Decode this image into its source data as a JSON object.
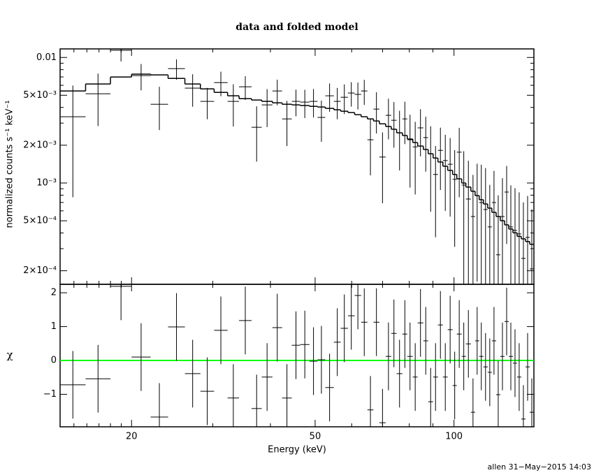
{
  "chart_data": {
    "type": "spectrum",
    "title": "data and folded model",
    "xlabel": "Energy (keV)",
    "footer": "allen 31−May−2015 14:03",
    "xscale": "log",
    "xlim": [
      14,
      149
    ],
    "xticks": [
      20,
      50,
      100
    ],
    "xminor": [
      15,
      16,
      17,
      18,
      19,
      30,
      40,
      60,
      70,
      80,
      90
    ],
    "bins": [
      14.0,
      15.9,
      18.0,
      20.0,
      22.0,
      24.0,
      26.1,
      28.2,
      30.2,
      32.3,
      34.2,
      36.4,
      38.3,
      40.4,
      42.4,
      44.5,
      46.4,
      48.6,
      50.6,
      52.6,
      54.9,
      56.8,
      58.9,
      60.9,
      62.9,
      64.9,
      66.9,
      68.9,
      71.1,
      73.1,
      75.1,
      77.3,
      79.2,
      81.4,
      83.4,
      85.8,
      87.9,
      90.1,
      92.3,
      94.6,
      96.9,
      99.3,
      101.4,
      103.9,
      106.1,
      108.8,
      111.1,
      113.4,
      115.8,
      118.3,
      120.8,
      123.4,
      126.0,
      128.7,
      131.4,
      134.2,
      137.0,
      139.9,
      142.9,
      145.9,
      149.0
    ],
    "panels": [
      {
        "ylabel": "normalized counts s⁻¹ keV⁻¹",
        "yscale": "log",
        "ylim": [
          0.000156,
          0.0117
        ],
        "yticks": [
          0.01,
          {
            "value": 0.005,
            "label": "5×10⁻³"
          },
          {
            "value": 0.002,
            "label": "2×10⁻³"
          },
          {
            "value": 0.001,
            "label": "10⁻³"
          },
          {
            "value": 0.0005,
            "label": "5×10⁻⁴"
          },
          {
            "value": 0.0002,
            "label": "2×10⁻⁴"
          }
        ],
        "yminor": [
          0.003,
          0.004,
          0.006,
          0.007,
          0.008,
          0.009,
          0.0003,
          0.0004,
          0.0006,
          0.0007,
          0.0008,
          0.0009
        ],
        "color": "#000000",
        "values": [
          0.00337,
          0.00514,
          0.0114,
          0.00717,
          0.00424,
          0.00815,
          0.0057,
          0.00447,
          0.00631,
          0.00447,
          0.00584,
          0.00278,
          0.00419,
          0.00541,
          0.00324,
          0.00447,
          0.00441,
          0.00447,
          0.00333,
          0.00495,
          0.00447,
          0.00482,
          0.00521,
          0.00508,
          0.00541,
          0.00221,
          0.00388,
          0.00161,
          0.00346,
          0.00316,
          0.00251,
          0.00324,
          0.00221,
          0.00194,
          0.00275,
          0.0023,
          0.00171,
          0.00117,
          0.00182,
          0.00151,
          0.00141,
          0.00107,
          0.00176,
          0.000962,
          0.000745,
          0.000541,
          0.000794,
          0.000699,
          0.000615,
          0.000447,
          0.000699,
          0.000268,
          0.000541,
          0.000847,
          0.000447,
          0.000419,
          0.000393,
          0.000251,
          0.000369,
          0.000207
        ],
        "errors": [
          0.0026,
          0.0023,
          0.0021,
          0.0017,
          0.0016,
          0.0015,
          0.00165,
          0.00125,
          0.0014,
          0.00165,
          0.00125,
          0.0013,
          0.0014,
          0.00125,
          0.00127,
          0.00107,
          0.00112,
          0.00114,
          0.0012,
          0.00126,
          0.00125,
          0.00128,
          0.00115,
          0.00123,
          0.00122,
          0.00106,
          0.0014,
          0.00092,
          0.00123,
          0.00125,
          0.00125,
          0.0012,
          0.00129,
          0.00113,
          0.00112,
          0.00107,
          0.00112,
          0.0008,
          0.00094,
          0.00091,
          0.00087,
          0.00076,
          0.00099,
          0.00083,
          0.00076,
          0.00062,
          0.00063,
          0.0007,
          0.0007,
          0.00052,
          0.00055,
          0.00053,
          0.00055,
          0.00052,
          0.00051,
          0.00049,
          0.00045,
          0.00045,
          0.00042,
          0.00041
        ],
        "model": {
          "color": "#000000",
          "values": [
            0.00541,
            0.00615,
            0.00699,
            0.00736,
            0.00726,
            0.00681,
            0.00615,
            0.00562,
            0.00527,
            0.00495,
            0.0047,
            0.00458,
            0.00447,
            0.00435,
            0.00424,
            0.00419,
            0.00414,
            0.00408,
            0.00403,
            0.00393,
            0.00383,
            0.00373,
            0.00364,
            0.0035,
            0.00337,
            0.00324,
            0.00312,
            0.00296,
            0.00282,
            0.00268,
            0.00251,
            0.00239,
            0.00224,
            0.0021,
            0.00197,
            0.00185,
            0.00171,
            0.00158,
            0.00147,
            0.00136,
            0.00126,
            0.00117,
            0.00108,
            0.001,
            0.000928,
            0.00086,
            0.000794,
            0.000736,
            0.000681,
            0.000631,
            0.000584,
            0.000541,
            0.000501,
            0.000464,
            0.00043,
            0.000401,
            0.000376,
            0.000359,
            0.000342,
            0.000325
          ]
        }
      },
      {
        "ylabel": "χ",
        "yscale": "linear",
        "ylim": [
          -1.96,
          2.25
        ],
        "yticks": [
          {
            "value": -1,
            "label": "−1"
          },
          0,
          1,
          2
        ],
        "color": "#000000",
        "values": [
          -0.72,
          -0.54,
          2.19,
          0.1,
          -1.67,
          0.99,
          -0.39,
          -0.91,
          0.89,
          -1.11,
          1.18,
          -1.42,
          -0.49,
          0.97,
          -1.11,
          0.45,
          0.47,
          -0.02,
          0.02,
          -0.8,
          0.54,
          0.95,
          1.32,
          1.92,
          1.13,
          -1.46,
          1.13,
          -1.84,
          0.12,
          0.8,
          -0.39,
          0.78,
          0.12,
          -0.49,
          1.11,
          0.58,
          -1.22,
          -0.49,
          1.05,
          -0.49,
          0.91,
          -0.74,
          0.78,
          0.12,
          0.49,
          -1.53,
          0.58,
          0.12,
          -0.19,
          -0.35,
          0.58,
          -1.01,
          0.12,
          1.15,
          0.12,
          -0.08,
          -0.49,
          -1.73,
          -0.19,
          -1.53
        ],
        "error": 1,
        "zero_line": {
          "value": 0,
          "color": "#00ff00"
        }
      }
    ]
  }
}
